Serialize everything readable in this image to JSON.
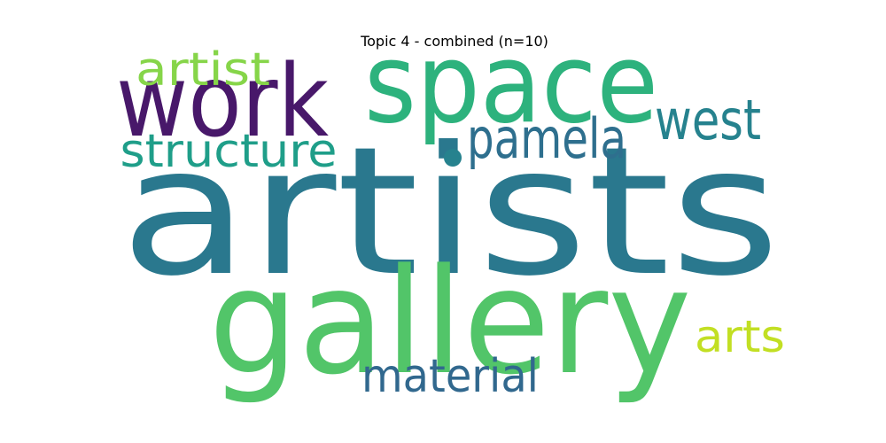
{
  "chart_data": {
    "type": "wordcloud",
    "title": "Topic 4 - combined (n=10)",
    "words": [
      {
        "text": "artists",
        "weight": 1.0,
        "color": "#2a788e"
      },
      {
        "text": "gallery",
        "weight": 0.82,
        "color": "#52c569"
      },
      {
        "text": "space",
        "weight": 0.62,
        "color": "#2db27d"
      },
      {
        "text": "work",
        "weight": 0.56,
        "color": "#48186a"
      },
      {
        "text": "pamela",
        "weight": 0.31,
        "color": "#2e6f8e"
      },
      {
        "text": "west",
        "weight": 0.31,
        "color": "#26828e"
      },
      {
        "text": "structure",
        "weight": 0.26,
        "color": "#1f9e89"
      },
      {
        "text": "artist",
        "weight": 0.26,
        "color": "#86d549"
      },
      {
        "text": "material",
        "weight": 0.26,
        "color": "#31688e"
      },
      {
        "text": "arts",
        "weight": 0.25,
        "color": "#c2df23"
      }
    ],
    "dot_color": "#26828e"
  }
}
